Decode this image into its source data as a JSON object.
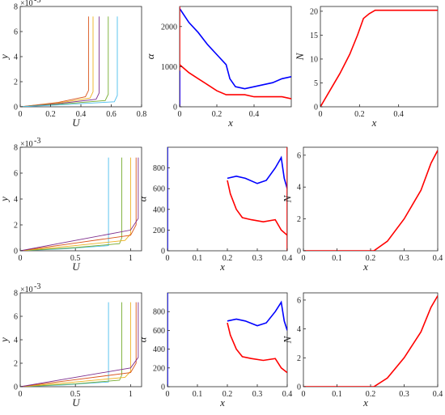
{
  "chart_data": [
    {
      "id": "r1c1",
      "type": "line",
      "xlabel": "U",
      "ylabel": "y",
      "ylabel_multiplier": "×10",
      "ylabel_exponent": "-3",
      "xlim": [
        0,
        0.8
      ],
      "ylim": [
        0,
        8
      ],
      "xticks": [
        0,
        0.2,
        0.4,
        0.6,
        0.8
      ],
      "xtick_labels": [
        "0",
        "0.2",
        "0.4",
        "0.6",
        "0.8"
      ],
      "yticks": [
        0,
        2,
        4,
        6,
        8
      ],
      "ytick_labels": [
        "0",
        "2",
        "4",
        "6",
        "8"
      ],
      "series": [
        {
          "color": "#d95319",
          "values": [
            [
              0,
              0
            ],
            [
              0.25,
              0.35
            ],
            [
              0.43,
              0.8
            ],
            [
              0.45,
              1.3
            ],
            [
              0.45,
              7.2
            ]
          ]
        },
        {
          "color": "#edb120",
          "values": [
            [
              0,
              0
            ],
            [
              0.25,
              0.3
            ],
            [
              0.46,
              0.7
            ],
            [
              0.48,
              1.2
            ],
            [
              0.48,
              7.2
            ]
          ]
        },
        {
          "color": "#7e2f8e",
          "values": [
            [
              0,
              0
            ],
            [
              0.25,
              0.25
            ],
            [
              0.5,
              0.6
            ],
            [
              0.52,
              1.1
            ],
            [
              0.52,
              7.2
            ]
          ]
        },
        {
          "color": "#77ac30",
          "values": [
            [
              0,
              0
            ],
            [
              0.25,
              0.2
            ],
            [
              0.56,
              0.5
            ],
            [
              0.58,
              1.0
            ],
            [
              0.58,
              7.2
            ]
          ]
        },
        {
          "color": "#4dbeee",
          "values": [
            [
              0,
              0
            ],
            [
              0.25,
              0.15
            ],
            [
              0.62,
              0.4
            ],
            [
              0.64,
              0.9
            ],
            [
              0.64,
              7.2
            ]
          ]
        }
      ]
    },
    {
      "id": "r1c2",
      "type": "line",
      "xlabel": "x",
      "ylabel": "α",
      "xlim": [
        0,
        0.6
      ],
      "ylim": [
        0,
        2500
      ],
      "xticks": [
        0,
        0.2,
        0.4
      ],
      "xtick_labels": [
        "0",
        "0.2",
        "0.4"
      ],
      "yticks": [
        0,
        1000,
        2000
      ],
      "ytick_labels": [
        "0",
        "1000",
        "2000"
      ],
      "series": [
        {
          "color": "#0000ff",
          "values": [
            [
              0,
              2450
            ],
            [
              0.05,
              2100
            ],
            [
              0.1,
              1850
            ],
            [
              0.15,
              1550
            ],
            [
              0.2,
              1300
            ],
            [
              0.25,
              1050
            ],
            [
              0.27,
              700
            ],
            [
              0.3,
              500
            ],
            [
              0.35,
              450
            ],
            [
              0.4,
              500
            ],
            [
              0.45,
              550
            ],
            [
              0.5,
              600
            ],
            [
              0.55,
              700
            ],
            [
              0.6,
              750
            ]
          ]
        },
        {
          "color": "#ff0000",
          "values": [
            [
              0,
              1050
            ],
            [
              0.05,
              850
            ],
            [
              0.1,
              700
            ],
            [
              0.15,
              550
            ],
            [
              0.2,
              400
            ],
            [
              0.25,
              300
            ],
            [
              0.3,
              300
            ],
            [
              0.35,
              300
            ],
            [
              0.4,
              250
            ],
            [
              0.45,
              250
            ],
            [
              0.5,
              250
            ],
            [
              0.55,
              250
            ],
            [
              0.6,
              200
            ]
          ]
        },
        {
          "color": "#ff0000",
          "values": [
            [
              0.0,
              0
            ],
            [
              0.0,
              2500
            ]
          ]
        },
        {
          "color": "#0000ff",
          "values": [
            [
              0.0,
              0
            ],
            [
              0.0,
              900
            ]
          ]
        }
      ]
    },
    {
      "id": "r1c3",
      "type": "line",
      "xlabel": "x",
      "ylabel": "N",
      "xlim": [
        0,
        0.6
      ],
      "ylim": [
        0,
        21
      ],
      "xticks": [
        0,
        0.2,
        0.4
      ],
      "xtick_labels": [
        "0",
        "0.2",
        "0.4"
      ],
      "yticks": [
        0,
        5,
        10,
        15,
        20
      ],
      "ytick_labels": [
        "0",
        "5",
        "10",
        "15",
        "20"
      ],
      "series": [
        {
          "color": "#ff0000",
          "values": [
            [
              0,
              0
            ],
            [
              0.05,
              3.5
            ],
            [
              0.1,
              7
            ],
            [
              0.15,
              11
            ],
            [
              0.19,
              15
            ],
            [
              0.22,
              18.5
            ],
            [
              0.25,
              19.5
            ],
            [
              0.28,
              20.2
            ],
            [
              0.6,
              20.2
            ]
          ]
        }
      ]
    },
    {
      "id": "r2c1",
      "type": "line",
      "xlabel": "U",
      "ylabel": "y",
      "ylabel_multiplier": "×10",
      "ylabel_exponent": "-3",
      "xlim": [
        0,
        1.1
      ],
      "ylim": [
        0,
        8
      ],
      "xticks": [
        0,
        0.5,
        1
      ],
      "xtick_labels": [
        "0",
        "0.5",
        "1"
      ],
      "yticks": [
        0,
        2,
        4,
        6,
        8
      ],
      "ytick_labels": [
        "0",
        "2",
        "4",
        "6",
        "8"
      ],
      "series": [
        {
          "color": "#4dbeee",
          "values": [
            [
              0,
              0
            ],
            [
              0.4,
              0.15
            ],
            [
              0.8,
              0.4
            ],
            [
              0.8,
              7.2
            ]
          ]
        },
        {
          "color": "#77ac30",
          "values": [
            [
              0,
              0
            ],
            [
              0.5,
              0.25
            ],
            [
              0.9,
              0.55
            ],
            [
              0.92,
              1.0
            ],
            [
              0.92,
              7.2
            ]
          ]
        },
        {
          "color": "#edb120",
          "values": [
            [
              0,
              0
            ],
            [
              0.5,
              0.4
            ],
            [
              0.95,
              0.8
            ],
            [
              1.0,
              1.3
            ],
            [
              1.0,
              7.2
            ]
          ]
        },
        {
          "color": "#d95319",
          "values": [
            [
              0,
              0
            ],
            [
              0.5,
              0.6
            ],
            [
              1.0,
              1.2
            ],
            [
              1.05,
              2.0
            ],
            [
              1.05,
              7.2
            ]
          ]
        },
        {
          "color": "#7e2f8e",
          "values": [
            [
              0,
              0
            ],
            [
              0.5,
              0.8
            ],
            [
              1.0,
              1.6
            ],
            [
              1.07,
              2.5
            ],
            [
              1.07,
              7.2
            ]
          ]
        }
      ]
    },
    {
      "id": "r2c2",
      "type": "line",
      "xlabel": "x",
      "ylabel": "α",
      "xlim": [
        0,
        0.4
      ],
      "ylim": [
        0,
        1000
      ],
      "xticks": [
        0,
        0.1,
        0.2,
        0.3,
        0.4
      ],
      "xtick_labels": [
        "0",
        "0.1",
        "0.2",
        "0.3",
        "0.4"
      ],
      "yticks": [
        0,
        200,
        400,
        600,
        800
      ],
      "ytick_labels": [
        "0",
        "200",
        "400",
        "600",
        "800"
      ],
      "series": [
        {
          "color": "#0000ff",
          "values": [
            [
              0.2,
              700
            ],
            [
              0.23,
              720
            ],
            [
              0.26,
              700
            ],
            [
              0.3,
              650
            ],
            [
              0.33,
              680
            ],
            [
              0.36,
              800
            ],
            [
              0.38,
              900
            ],
            [
              0.39,
              700
            ],
            [
              0.4,
              600
            ]
          ]
        },
        {
          "color": "#ff0000",
          "values": [
            [
              0.2,
              680
            ],
            [
              0.21,
              550
            ],
            [
              0.23,
              400
            ],
            [
              0.25,
              320
            ],
            [
              0.28,
              300
            ],
            [
              0.32,
              280
            ],
            [
              0.36,
              300
            ],
            [
              0.38,
              200
            ],
            [
              0.4,
              150
            ]
          ]
        },
        {
          "color": "#0000ff",
          "values": [
            [
              0.0,
              0
            ],
            [
              0.0,
              1000
            ]
          ]
        },
        {
          "color": "#ff0000",
          "values": [
            [
              0.4,
              0
            ],
            [
              0.4,
              1000
            ]
          ]
        }
      ]
    },
    {
      "id": "r2c3",
      "type": "line",
      "xlabel": "x",
      "ylabel": "N",
      "xlim": [
        0,
        0.4
      ],
      "ylim": [
        0,
        6.5
      ],
      "xticks": [
        0,
        0.1,
        0.2,
        0.3,
        0.4
      ],
      "xtick_labels": [
        "0",
        "0.1",
        "0.2",
        "0.3",
        "0.4"
      ],
      "yticks": [
        0,
        2,
        4,
        6
      ],
      "ytick_labels": [
        "0",
        "2",
        "4",
        "6"
      ],
      "series": [
        {
          "color": "#ff0000",
          "values": [
            [
              0,
              0
            ],
            [
              0.21,
              0
            ],
            [
              0.25,
              0.6
            ],
            [
              0.3,
              2
            ],
            [
              0.35,
              3.8
            ],
            [
              0.38,
              5.5
            ],
            [
              0.4,
              6.3
            ]
          ]
        }
      ]
    },
    {
      "id": "r3c1",
      "type": "line",
      "xlabel": "U",
      "ylabel": "y",
      "ylabel_multiplier": "×10",
      "ylabel_exponent": "-3",
      "xlim": [
        0,
        1.1
      ],
      "ylim": [
        0,
        8
      ],
      "xticks": [
        0,
        0.5,
        1
      ],
      "xtick_labels": [
        "0",
        "0.5",
        "1"
      ],
      "yticks": [
        0,
        2,
        4,
        6,
        8
      ],
      "ytick_labels": [
        "0",
        "2",
        "4",
        "6",
        "8"
      ],
      "series": [
        {
          "color": "#4dbeee",
          "values": [
            [
              0,
              0
            ],
            [
              0.4,
              0.15
            ],
            [
              0.8,
              0.4
            ],
            [
              0.8,
              7.2
            ]
          ]
        },
        {
          "color": "#77ac30",
          "values": [
            [
              0,
              0
            ],
            [
              0.5,
              0.25
            ],
            [
              0.9,
              0.55
            ],
            [
              0.92,
              1.0
            ],
            [
              0.92,
              7.2
            ]
          ]
        },
        {
          "color": "#edb120",
          "values": [
            [
              0,
              0
            ],
            [
              0.5,
              0.4
            ],
            [
              0.95,
              0.8
            ],
            [
              1.0,
              1.3
            ],
            [
              1.0,
              7.2
            ]
          ]
        },
        {
          "color": "#d95319",
          "values": [
            [
              0,
              0
            ],
            [
              0.5,
              0.6
            ],
            [
              1.0,
              1.2
            ],
            [
              1.05,
              2.0
            ],
            [
              1.05,
              7.2
            ]
          ]
        },
        {
          "color": "#7e2f8e",
          "values": [
            [
              0,
              0
            ],
            [
              0.5,
              0.8
            ],
            [
              1.0,
              1.6
            ],
            [
              1.07,
              2.5
            ],
            [
              1.07,
              7.2
            ]
          ]
        }
      ]
    },
    {
      "id": "r3c2",
      "type": "line",
      "xlabel": "x",
      "ylabel": "α",
      "xlim": [
        0,
        0.4
      ],
      "ylim": [
        0,
        1000
      ],
      "xticks": [
        0,
        0.1,
        0.2,
        0.3,
        0.4
      ],
      "xtick_labels": [
        "0",
        "0.1",
        "0.2",
        "0.3",
        "0.4"
      ],
      "yticks": [
        0,
        200,
        400,
        600,
        800
      ],
      "ytick_labels": [
        "0",
        "200",
        "400",
        "600",
        "800"
      ],
      "series": [
        {
          "color": "#0000ff",
          "values": [
            [
              0.2,
              700
            ],
            [
              0.23,
              720
            ],
            [
              0.26,
              700
            ],
            [
              0.3,
              650
            ],
            [
              0.33,
              680
            ],
            [
              0.36,
              800
            ],
            [
              0.38,
              900
            ],
            [
              0.39,
              700
            ],
            [
              0.4,
              600
            ]
          ]
        },
        {
          "color": "#ff0000",
          "values": [
            [
              0.2,
              680
            ],
            [
              0.21,
              550
            ],
            [
              0.23,
              400
            ],
            [
              0.25,
              320
            ],
            [
              0.28,
              300
            ],
            [
              0.32,
              280
            ],
            [
              0.36,
              300
            ],
            [
              0.38,
              200
            ],
            [
              0.4,
              150
            ]
          ]
        },
        {
          "color": "#0000ff",
          "values": [
            [
              0.0,
              0
            ],
            [
              0.0,
              1000
            ]
          ]
        }
      ]
    },
    {
      "id": "r3c3",
      "type": "line",
      "xlabel": "x",
      "ylabel": "N",
      "xlim": [
        0,
        0.4
      ],
      "ylim": [
        0,
        6.5
      ],
      "xticks": [
        0,
        0.1,
        0.2,
        0.3,
        0.4
      ],
      "xtick_labels": [
        "0",
        "0.1",
        "0.2",
        "0.3",
        "0.4"
      ],
      "yticks": [
        0,
        2,
        4,
        6
      ],
      "ytick_labels": [
        "0",
        "2",
        "4",
        "6"
      ],
      "series": [
        {
          "color": "#ff0000",
          "values": [
            [
              0,
              0
            ],
            [
              0.21,
              0
            ],
            [
              0.25,
              0.6
            ],
            [
              0.3,
              2
            ],
            [
              0.35,
              3.8
            ],
            [
              0.38,
              5.5
            ],
            [
              0.4,
              6.3
            ]
          ]
        }
      ]
    }
  ]
}
